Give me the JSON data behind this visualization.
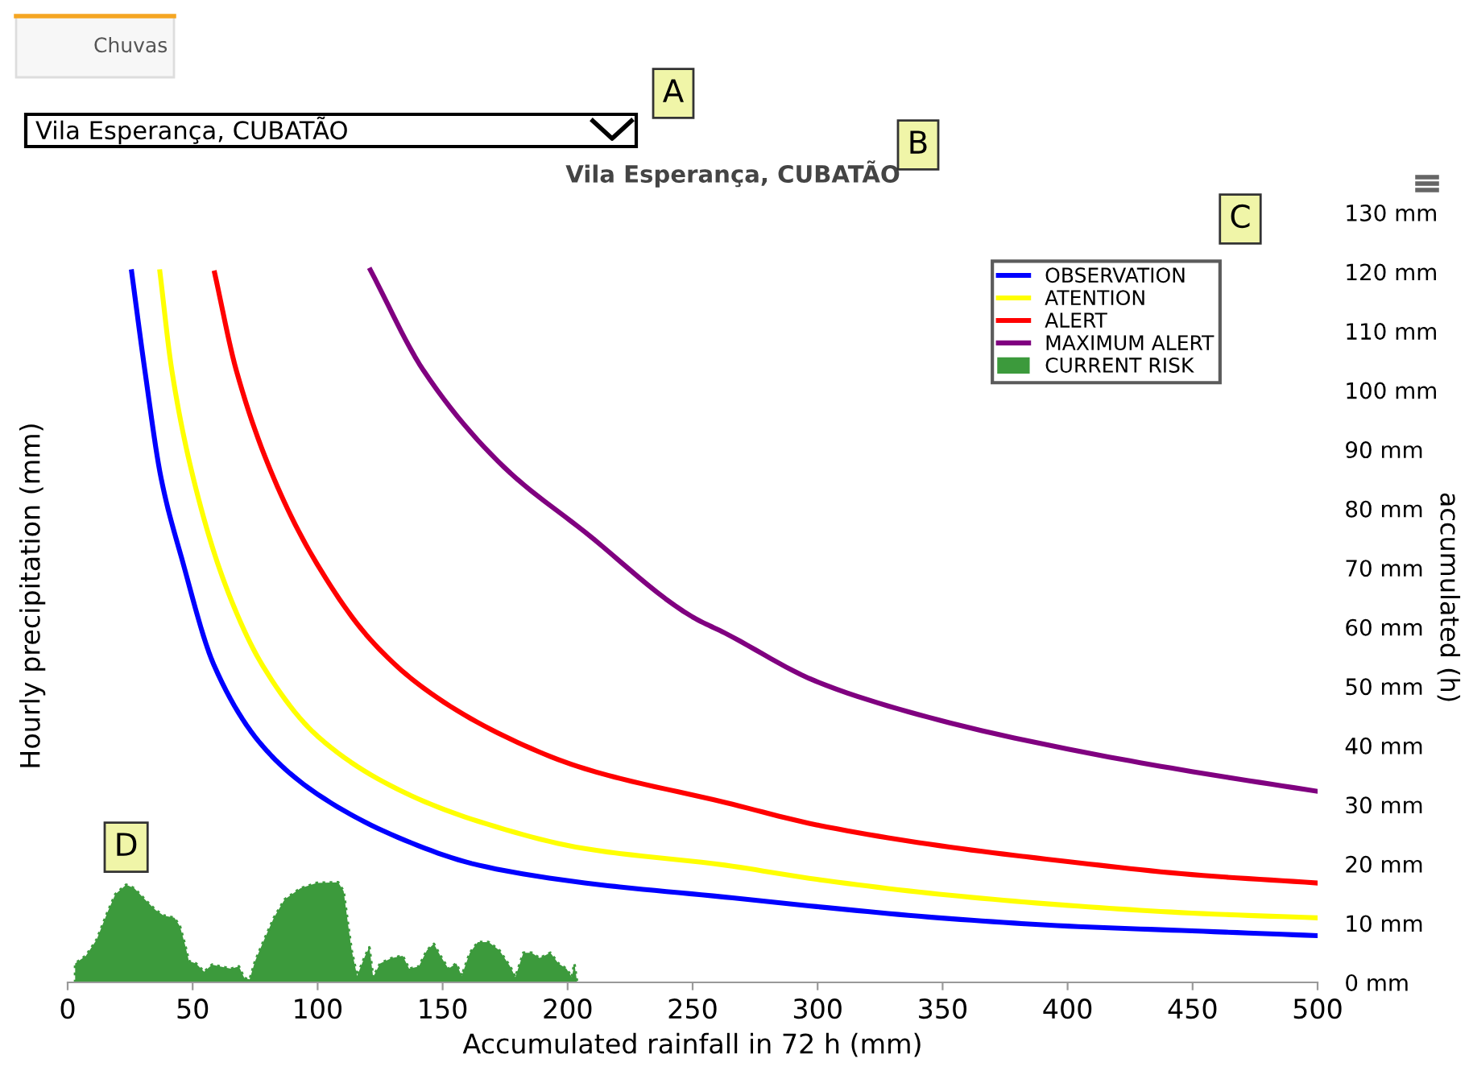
{
  "chart_data": {
    "type": "line",
    "title": "Vila Esperança, CUBATÃO",
    "xlabel": "Accumulated rainfall in 72 h (mm)",
    "ylabel": "Hourly precipitation (mm)",
    "y2label": "accumulated (h)",
    "annotations": [
      "Chuvas",
      "Vila Esperança, CUBATÃO",
      "A",
      "B",
      "C",
      {
        "text": "D",
        "x": 23.4,
        "y": 16.5
      }
    ],
    "xlim": [
      0,
      500
    ],
    "xticks": [
      0,
      50,
      100,
      150,
      200,
      250,
      300,
      350,
      400,
      450,
      500
    ],
    "ylim": [
      0,
      130
    ],
    "yticks": [
      {
        "value": 0,
        "label": "0 mm"
      },
      {
        "value": 10,
        "label": "10 mm"
      },
      {
        "value": 20,
        "label": "20 mm"
      },
      {
        "value": 30,
        "label": "30 mm"
      },
      {
        "value": 40,
        "label": "40 mm"
      },
      {
        "value": 50,
        "label": "50 mm"
      },
      {
        "value": 60,
        "label": "60 mm"
      },
      {
        "value": 70,
        "label": "70 mm"
      },
      {
        "value": 80,
        "label": "80 mm"
      },
      {
        "value": 90,
        "label": "90 mm"
      },
      {
        "value": 100,
        "label": "100 mm"
      },
      {
        "value": 110,
        "label": "110 mm"
      },
      {
        "value": 120,
        "label": "120 mm"
      },
      {
        "value": 130,
        "label": "130 mm"
      }
    ],
    "grid": false,
    "legend": "top right",
    "marker": "none",
    "line_style": "solid",
    "series": [
      {
        "name": "OBSERVATION",
        "color": "#0000ff",
        "x": [
          25.6,
          30.9,
          37.4,
          45.7,
          58.6,
          78.0,
          99.9,
          132.1,
          164.3,
          206.8,
          262.9,
          299.6,
          348.6,
          400.1,
          449.7,
          499.4
        ],
        "values": [
          120.0,
          103.3,
          85.1,
          71.5,
          53.5,
          39.9,
          31.8,
          24.5,
          19.8,
          16.8,
          14.4,
          12.8,
          10.9,
          9.5,
          8.7,
          7.9
        ]
      },
      {
        "name": "ATENTION",
        "color": "#ffff00",
        "x": [
          36.9,
          41.7,
          50.3,
          63.1,
          78.0,
          99.9,
          132.1,
          164.3,
          206.8,
          262.9,
          299.6,
          348.6,
          400.1,
          449.7,
          499.4
        ],
        "values": [
          120.0,
          103.3,
          85.1,
          67.1,
          53.5,
          41.6,
          32.6,
          27.2,
          22.6,
          19.8,
          17.4,
          14.9,
          13.0,
          11.7,
          10.9
        ]
      },
      {
        "name": "ALERT",
        "color": "#ff0000",
        "x": [
          58.8,
          67.5,
          82.5,
          99.7,
          121.1,
          142.4,
          174.6,
          206.8,
          262.9,
          299.6,
          348.6,
          400.1,
          449.7,
          499.4
        ],
        "values": [
          119.8,
          103.3,
          85.1,
          70.7,
          57.9,
          49.7,
          41.6,
          36.1,
          30.4,
          26.6,
          23.1,
          20.4,
          18.2,
          16.8
        ]
      },
      {
        "name": "MAXIMUM ALERT",
        "color": "#800080",
        "x": [
          121.1,
          142.4,
          174.6,
          206.8,
          250.0,
          262.9,
          299.6,
          348.6,
          400.1,
          449.7,
          499.4
        ],
        "values": [
          120.3,
          103.3,
          87.0,
          76.1,
          61.7,
          59.0,
          50.8,
          44.3,
          39.4,
          35.6,
          32.3
        ]
      },
      {
        "name": "CURRENT RISK",
        "color": "#3c9a3c",
        "type": "area",
        "x": [
          3.0,
          3.0,
          7.3,
          11.6,
          15.9,
          19.1,
          23.4,
          26.6,
          30.9,
          35.2,
          38.4,
          42.7,
          44.9,
          47.0,
          48.5,
          51.3,
          54.6,
          57.8,
          61.0,
          65.3,
          68.5,
          70.7,
          72.8,
          75.0,
          78.2,
          82.5,
          86.8,
          93.2,
          99.7,
          108.2,
          110.4,
          112.1,
          113.6,
          115.8,
          119.0,
          120.7,
          122.2,
          125.0,
          129.7,
          134.0,
          136.6,
          140.5,
          143.7,
          146.5,
          149.1,
          152.3,
          155.5,
          157.6,
          160.9,
          164.1,
          168.4,
          172.7,
          177.0,
          179.1,
          182.3,
          185.6,
          188.8,
          193.1,
          196.3,
          199.5,
          201.7,
          202.7,
          203.8
        ],
        "values": [
          0,
          3.2,
          4.5,
          7.2,
          11.8,
          14.9,
          16.5,
          15.9,
          14.0,
          12.2,
          11.3,
          10.9,
          9.5,
          6.3,
          3.6,
          3.2,
          1.8,
          3.0,
          2.7,
          2.3,
          2.7,
          0.7,
          0.5,
          3.6,
          6.8,
          10.9,
          14.0,
          15.9,
          16.8,
          16.9,
          15.4,
          10.0,
          5.4,
          1.1,
          4.5,
          5.9,
          0.9,
          3.2,
          4.1,
          4.5,
          2.3,
          2.7,
          5.4,
          6.5,
          4.5,
          2.3,
          3.2,
          1.1,
          5.0,
          6.8,
          6.8,
          5.4,
          2.7,
          0.9,
          5.0,
          5.0,
          4.1,
          5.0,
          3.2,
          2.3,
          0.9,
          3.2,
          0
        ]
      }
    ]
  }
}
